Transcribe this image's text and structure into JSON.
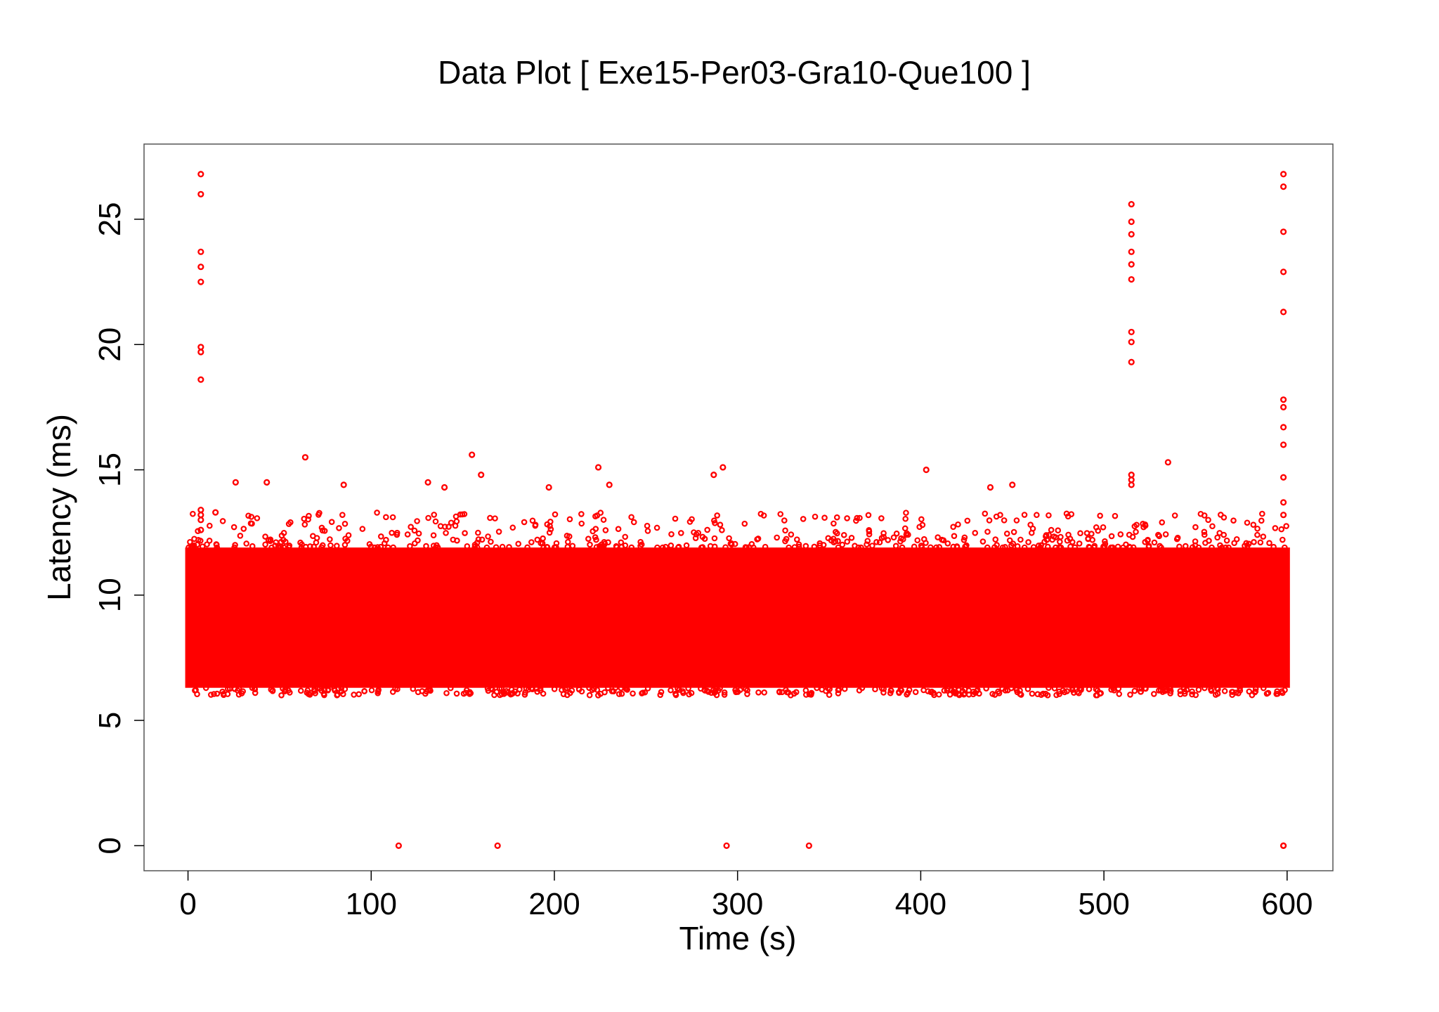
{
  "chart_data": {
    "type": "scatter",
    "title": "Data Plot [ Exe15-Per03-Gra10-Que100 ]",
    "xlabel": "Time (s)",
    "ylabel": "Latency (ms)",
    "xlim": [
      -24,
      625
    ],
    "ylim": [
      -1.0,
      28.0
    ],
    "x_ticks": [
      0,
      100,
      200,
      300,
      400,
      500,
      600
    ],
    "y_ticks": [
      0,
      5,
      10,
      15,
      20,
      25
    ],
    "grid": false,
    "legend": "none",
    "marker": "open-circle",
    "color": "#ff0000",
    "dense_band": {
      "x_range": [
        0,
        600
      ],
      "y_range": [
        6.3,
        11.9
      ]
    },
    "series": [
      {
        "x": [
          7,
          7,
          7,
          7,
          7,
          7,
          7,
          7,
          7,
          7,
          7,
          115,
          169,
          294,
          339,
          515,
          515,
          515,
          515,
          515,
          515,
          515,
          515,
          515,
          515,
          515,
          515,
          535,
          598,
          598,
          598,
          598,
          598,
          598,
          598,
          598,
          598,
          598,
          598,
          598,
          598,
          598,
          64,
          155,
          224,
          292,
          403,
          26,
          43,
          131,
          140,
          197,
          230,
          450,
          438,
          287,
          160,
          85,
          15,
          7
        ],
        "y": [
          26.8,
          26.0,
          23.7,
          23.1,
          22.5,
          19.9,
          19.7,
          18.6,
          13.4,
          13.0,
          12.6,
          0.0,
          0.0,
          0.0,
          0.0,
          25.6,
          24.9,
          24.4,
          23.7,
          23.2,
          22.6,
          20.5,
          20.1,
          19.3,
          14.8,
          14.6,
          14.4,
          15.3,
          26.8,
          26.3,
          24.5,
          22.9,
          21.3,
          17.8,
          17.5,
          16.0,
          14.7,
          13.7,
          13.2,
          0.0,
          0.0,
          16.7,
          15.5,
          15.6,
          15.1,
          15.1,
          15.0,
          14.5,
          14.5,
          14.5,
          14.3,
          14.3,
          14.4,
          14.4,
          14.3,
          14.8,
          14.8,
          14.4,
          13.3,
          13.2
        ]
      }
    ]
  }
}
